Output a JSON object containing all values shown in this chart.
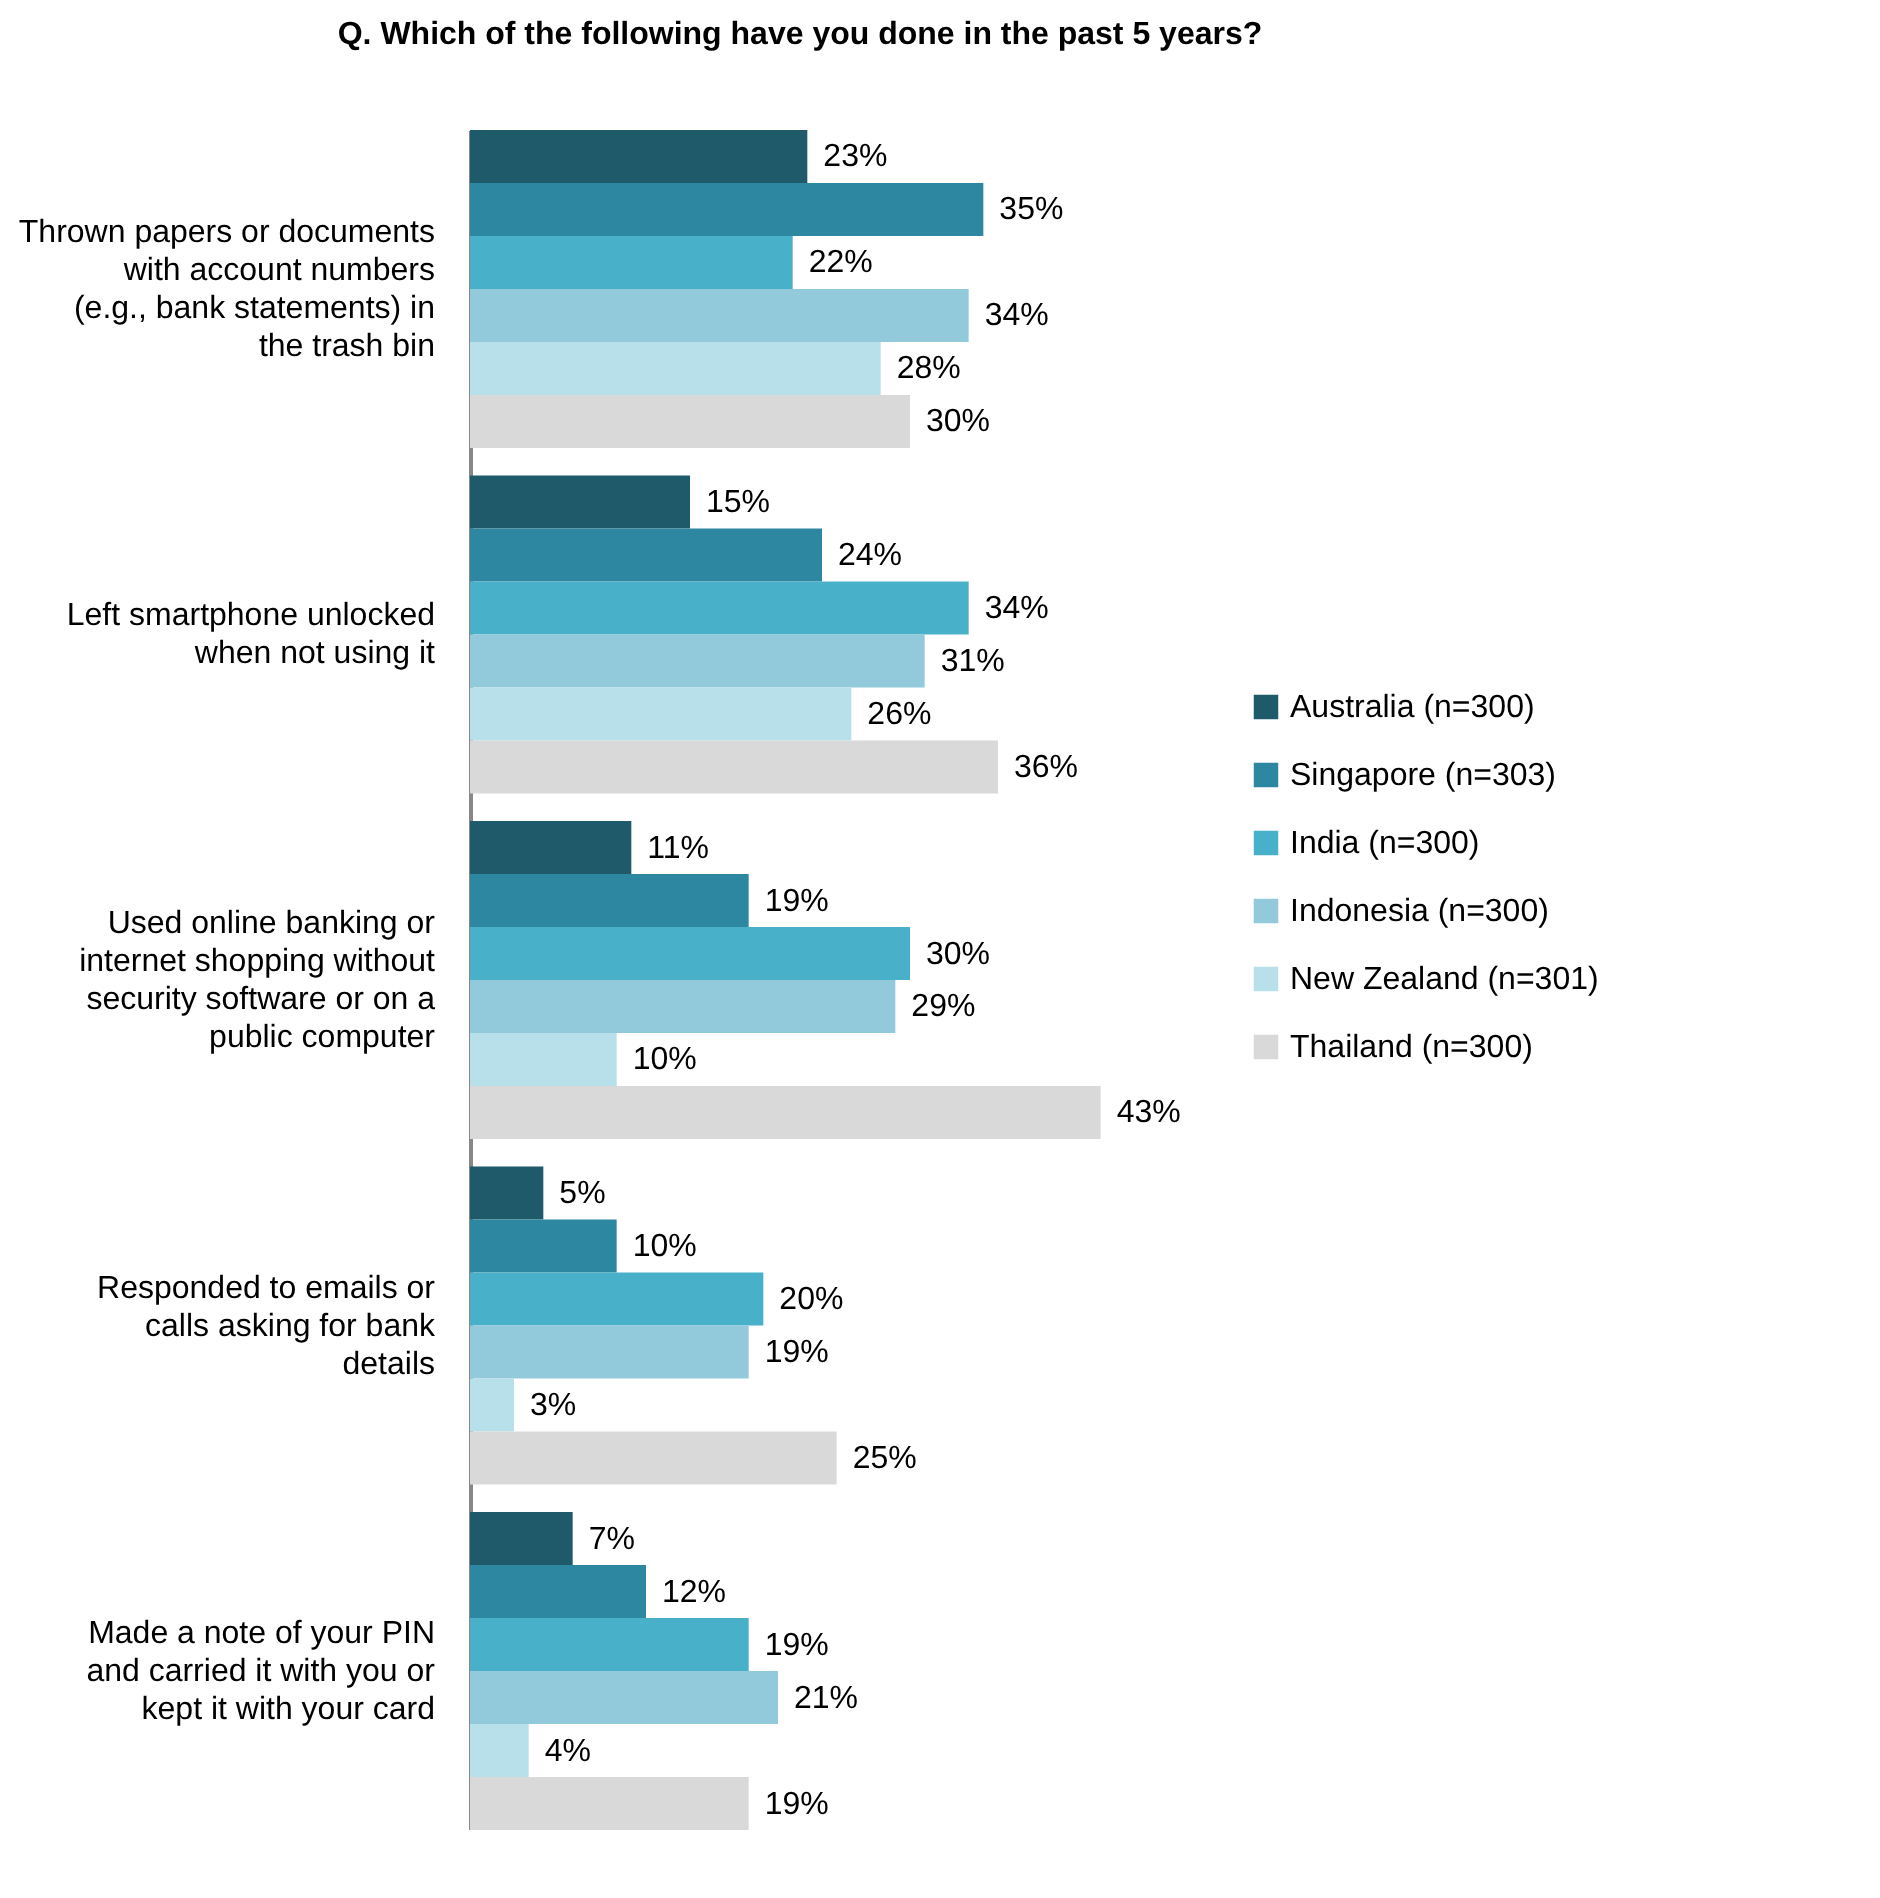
{
  "chart_data": {
    "type": "bar",
    "orientation": "horizontal",
    "title": "Q. Which of the following have you done in the past 5 years?",
    "categories": [
      "Thrown papers or documents with account numbers (e.g., bank statements) in the trash bin",
      "Left smartphone unlocked when not using it",
      "Used online banking or internet shopping without security software or on a public computer",
      "Responded to emails or calls asking for bank details",
      "Made a note of your PIN and carried it with you or kept it with your card"
    ],
    "series": [
      {
        "name": "Australia (n=300)",
        "color": "#1f5a6a",
        "values": [
          23,
          15,
          11,
          5,
          7
        ],
        "value_labels": [
          "23%",
          "15%",
          "11%",
          "5%",
          "7%"
        ]
      },
      {
        "name": "Singapore (n=303)",
        "color": "#2e87a0",
        "values": [
          35,
          24,
          19,
          10,
          12
        ],
        "value_labels": [
          "35%",
          "24%",
          "19%",
          "10%",
          "12%"
        ]
      },
      {
        "name": "India (n=300)",
        "color": "#48b0c8",
        "values": [
          22,
          34,
          30,
          20,
          19
        ],
        "value_labels": [
          "22%",
          "34%",
          "30%",
          "20%",
          "19%"
        ]
      },
      {
        "name": "Indonesia (n=300)",
        "color": "#92cadb",
        "values": [
          34,
          31,
          29,
          19,
          21
        ],
        "value_labels": [
          "34%",
          "31%",
          "29%",
          "19%",
          "21%"
        ]
      },
      {
        "name": "New Zealand (n=301)",
        "color": "#b8e0ea",
        "values": [
          28,
          26,
          10,
          3,
          4
        ],
        "value_labels": [
          "28%",
          "26%",
          "10%",
          "3%",
          "4%"
        ]
      },
      {
        "name": "Thailand (n=300)",
        "color": "#d9d9d9",
        "values": [
          30,
          36,
          43,
          25,
          19
        ],
        "value_labels": [
          "30%",
          "36%",
          "43%",
          "25%",
          "19%"
        ]
      }
    ],
    "legend": "right",
    "tick_labels": "y",
    "grid": false
  }
}
